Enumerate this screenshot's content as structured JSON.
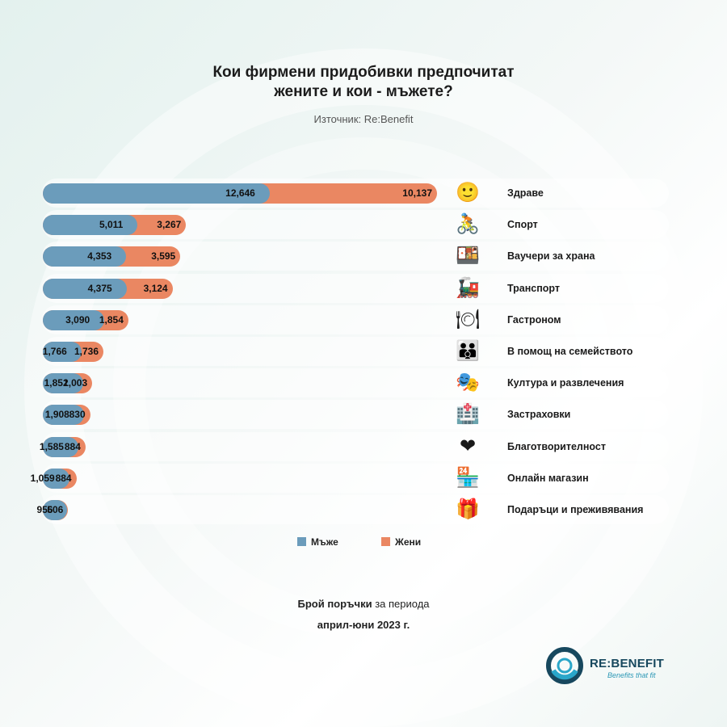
{
  "title_line1": "Кои фирмени придобивки предпочитат",
  "title_line2": "жените и кои - мъжете?",
  "source": "Източник: Re:Benefit",
  "chart_data": {
    "type": "bar",
    "orientation": "horizontal",
    "stacked": true,
    "title": "Кои фирмени придобивки предпочитат жените и кои - мъжете?",
    "categories": [
      "Здраве",
      "Спорт",
      "Ваучери за храна",
      "Транспорт",
      "Гастроном",
      "В помощ на семейството",
      "Култура и развлечения",
      "Застраховки",
      "Благотворителност",
      "Онлайн магазин",
      "Подаръци и преживявания"
    ],
    "icons": [
      "🙂",
      "🚴",
      "🍱",
      "🚂",
      "🍽",
      "👪",
      "🎭",
      "🏥",
      "❤",
      "🏪",
      "🎁"
    ],
    "series": [
      {
        "name": "Мъже",
        "color": "#6b9cbb",
        "values": [
          12646,
          5011,
          4353,
          4375,
          3090,
          1766,
          1852,
          1908,
          1585,
          1059,
          956
        ]
      },
      {
        "name": "Жени",
        "color": "#ea8762",
        "values": [
          10137,
          3267,
          3595,
          3124,
          1854,
          1736,
          1003,
          830,
          884,
          884,
          506
        ]
      }
    ],
    "value_labels_m": [
      "12,646",
      "5,011",
      "4,353",
      "4,375",
      "3,090",
      "1,766",
      "1,852",
      "1,908",
      "1,585",
      "1,059",
      "956"
    ],
    "value_labels_f": [
      "10,137",
      "3,267",
      "3,595",
      "3,124",
      "1,854",
      "1,736",
      "1,003",
      "830",
      "884",
      "884",
      "506"
    ],
    "legend_position": "bottom-center",
    "xlim": [
      0,
      22783
    ]
  },
  "legend": {
    "men": "Мъже",
    "women": "Жени"
  },
  "caption": {
    "bold": "Брой поръчки",
    "rest": " за периода",
    "line2": "април-юни 2023 г."
  },
  "logo": {
    "name": "RE:BENEFIT",
    "tagline": "Benefits that fit"
  }
}
